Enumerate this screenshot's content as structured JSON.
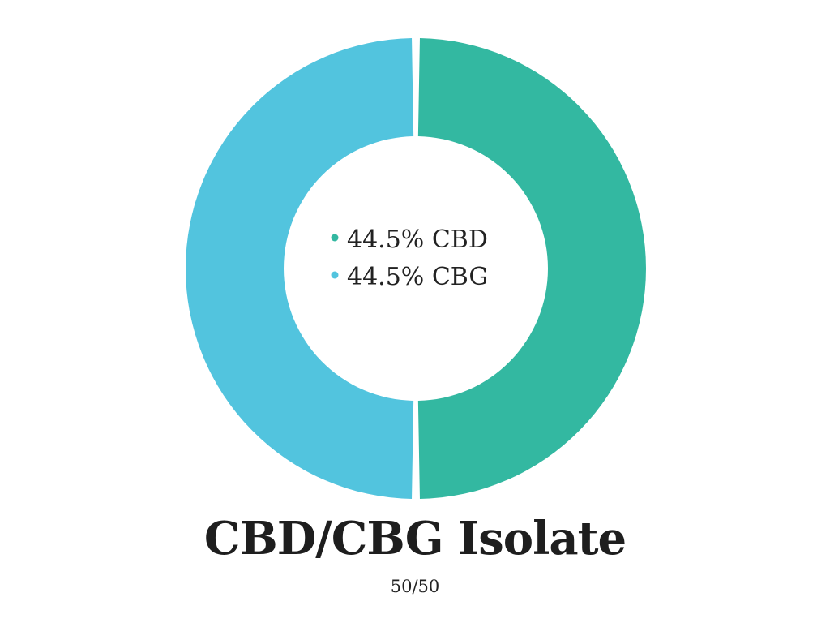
{
  "chart_data": {
    "type": "pie",
    "title": "CBD/CBG Isolate",
    "subtitle": "50/50",
    "legend_position": "center",
    "slices": [
      {
        "name": "CBD",
        "label": "44.5% CBD",
        "value": 44.5,
        "color": "#33b8a1"
      },
      {
        "name": "CBG",
        "label": "44.5% CBG",
        "value": 44.5,
        "color": "#52c4de"
      }
    ]
  }
}
